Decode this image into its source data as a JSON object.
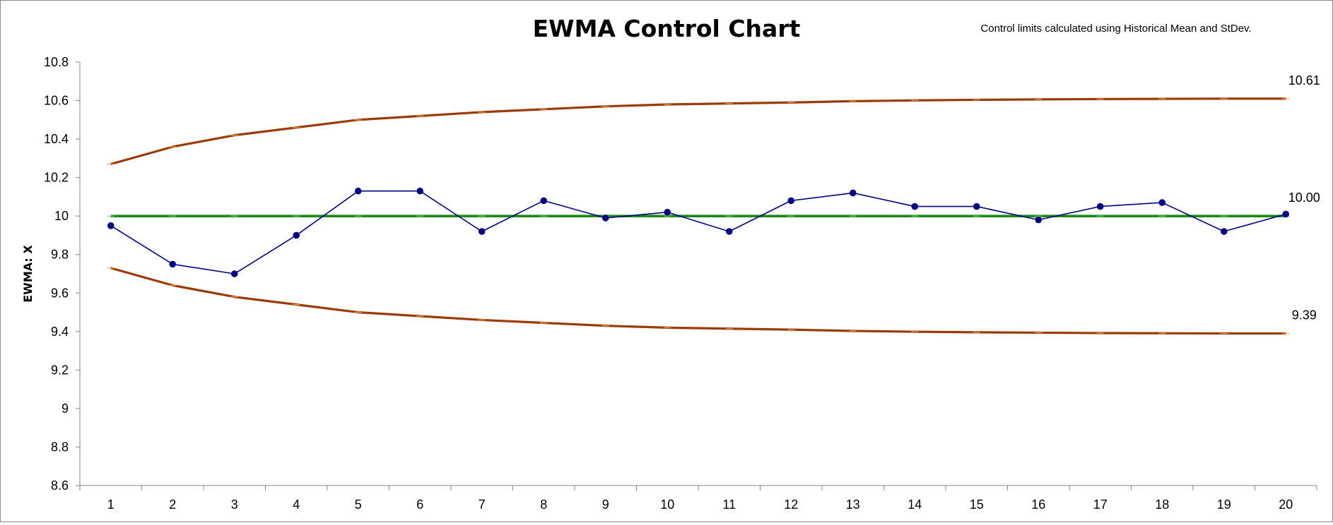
{
  "chart_data": {
    "type": "line",
    "title": "EWMA Control Chart",
    "subtitle": "Control limits calculated using Historical Mean and StDev.",
    "ylabel": "EWMA: X",
    "xlabel": "",
    "ylim": [
      8.6,
      10.8
    ],
    "y_ticks": [
      "8.6",
      "8.8",
      "9",
      "9.2",
      "9.4",
      "9.6",
      "9.8",
      "10",
      "10.2",
      "10.4",
      "10.6",
      "10.8"
    ],
    "categories": [
      "1",
      "2",
      "3",
      "4",
      "5",
      "6",
      "7",
      "8",
      "9",
      "10",
      "11",
      "12",
      "13",
      "14",
      "15",
      "16",
      "17",
      "18",
      "19",
      "20"
    ],
    "grid": false,
    "legend": "none",
    "series": [
      {
        "role": "ucl",
        "color": "#9c3a06",
        "values": [
          10.27,
          10.36,
          10.42,
          10.46,
          10.5,
          10.52,
          10.54,
          10.555,
          10.57,
          10.58,
          10.585,
          10.59,
          10.597,
          10.601,
          10.604,
          10.606,
          10.608,
          10.609,
          10.61,
          10.61
        ],
        "end_label": "10.61"
      },
      {
        "role": "center",
        "color": "#1a8a1a",
        "values": [
          10,
          10,
          10,
          10,
          10,
          10,
          10,
          10,
          10,
          10,
          10,
          10,
          10,
          10,
          10,
          10,
          10,
          10,
          10,
          10
        ],
        "end_label": "10.00"
      },
      {
        "role": "lcl",
        "color": "#9c3a06",
        "values": [
          9.73,
          9.64,
          9.58,
          9.54,
          9.5,
          9.48,
          9.46,
          9.445,
          9.43,
          9.42,
          9.415,
          9.41,
          9.403,
          9.399,
          9.396,
          9.394,
          9.392,
          9.391,
          9.39,
          9.39
        ],
        "end_label": "9.39"
      },
      {
        "role": "ewma",
        "color": "#000080",
        "values": [
          9.95,
          9.75,
          9.7,
          9.9,
          10.13,
          10.13,
          9.92,
          10.08,
          9.99,
          10.02,
          9.92,
          10.08,
          10.12,
          10.05,
          10.05,
          9.98,
          10.05,
          10.07,
          9.92,
          10.01
        ]
      }
    ]
  }
}
